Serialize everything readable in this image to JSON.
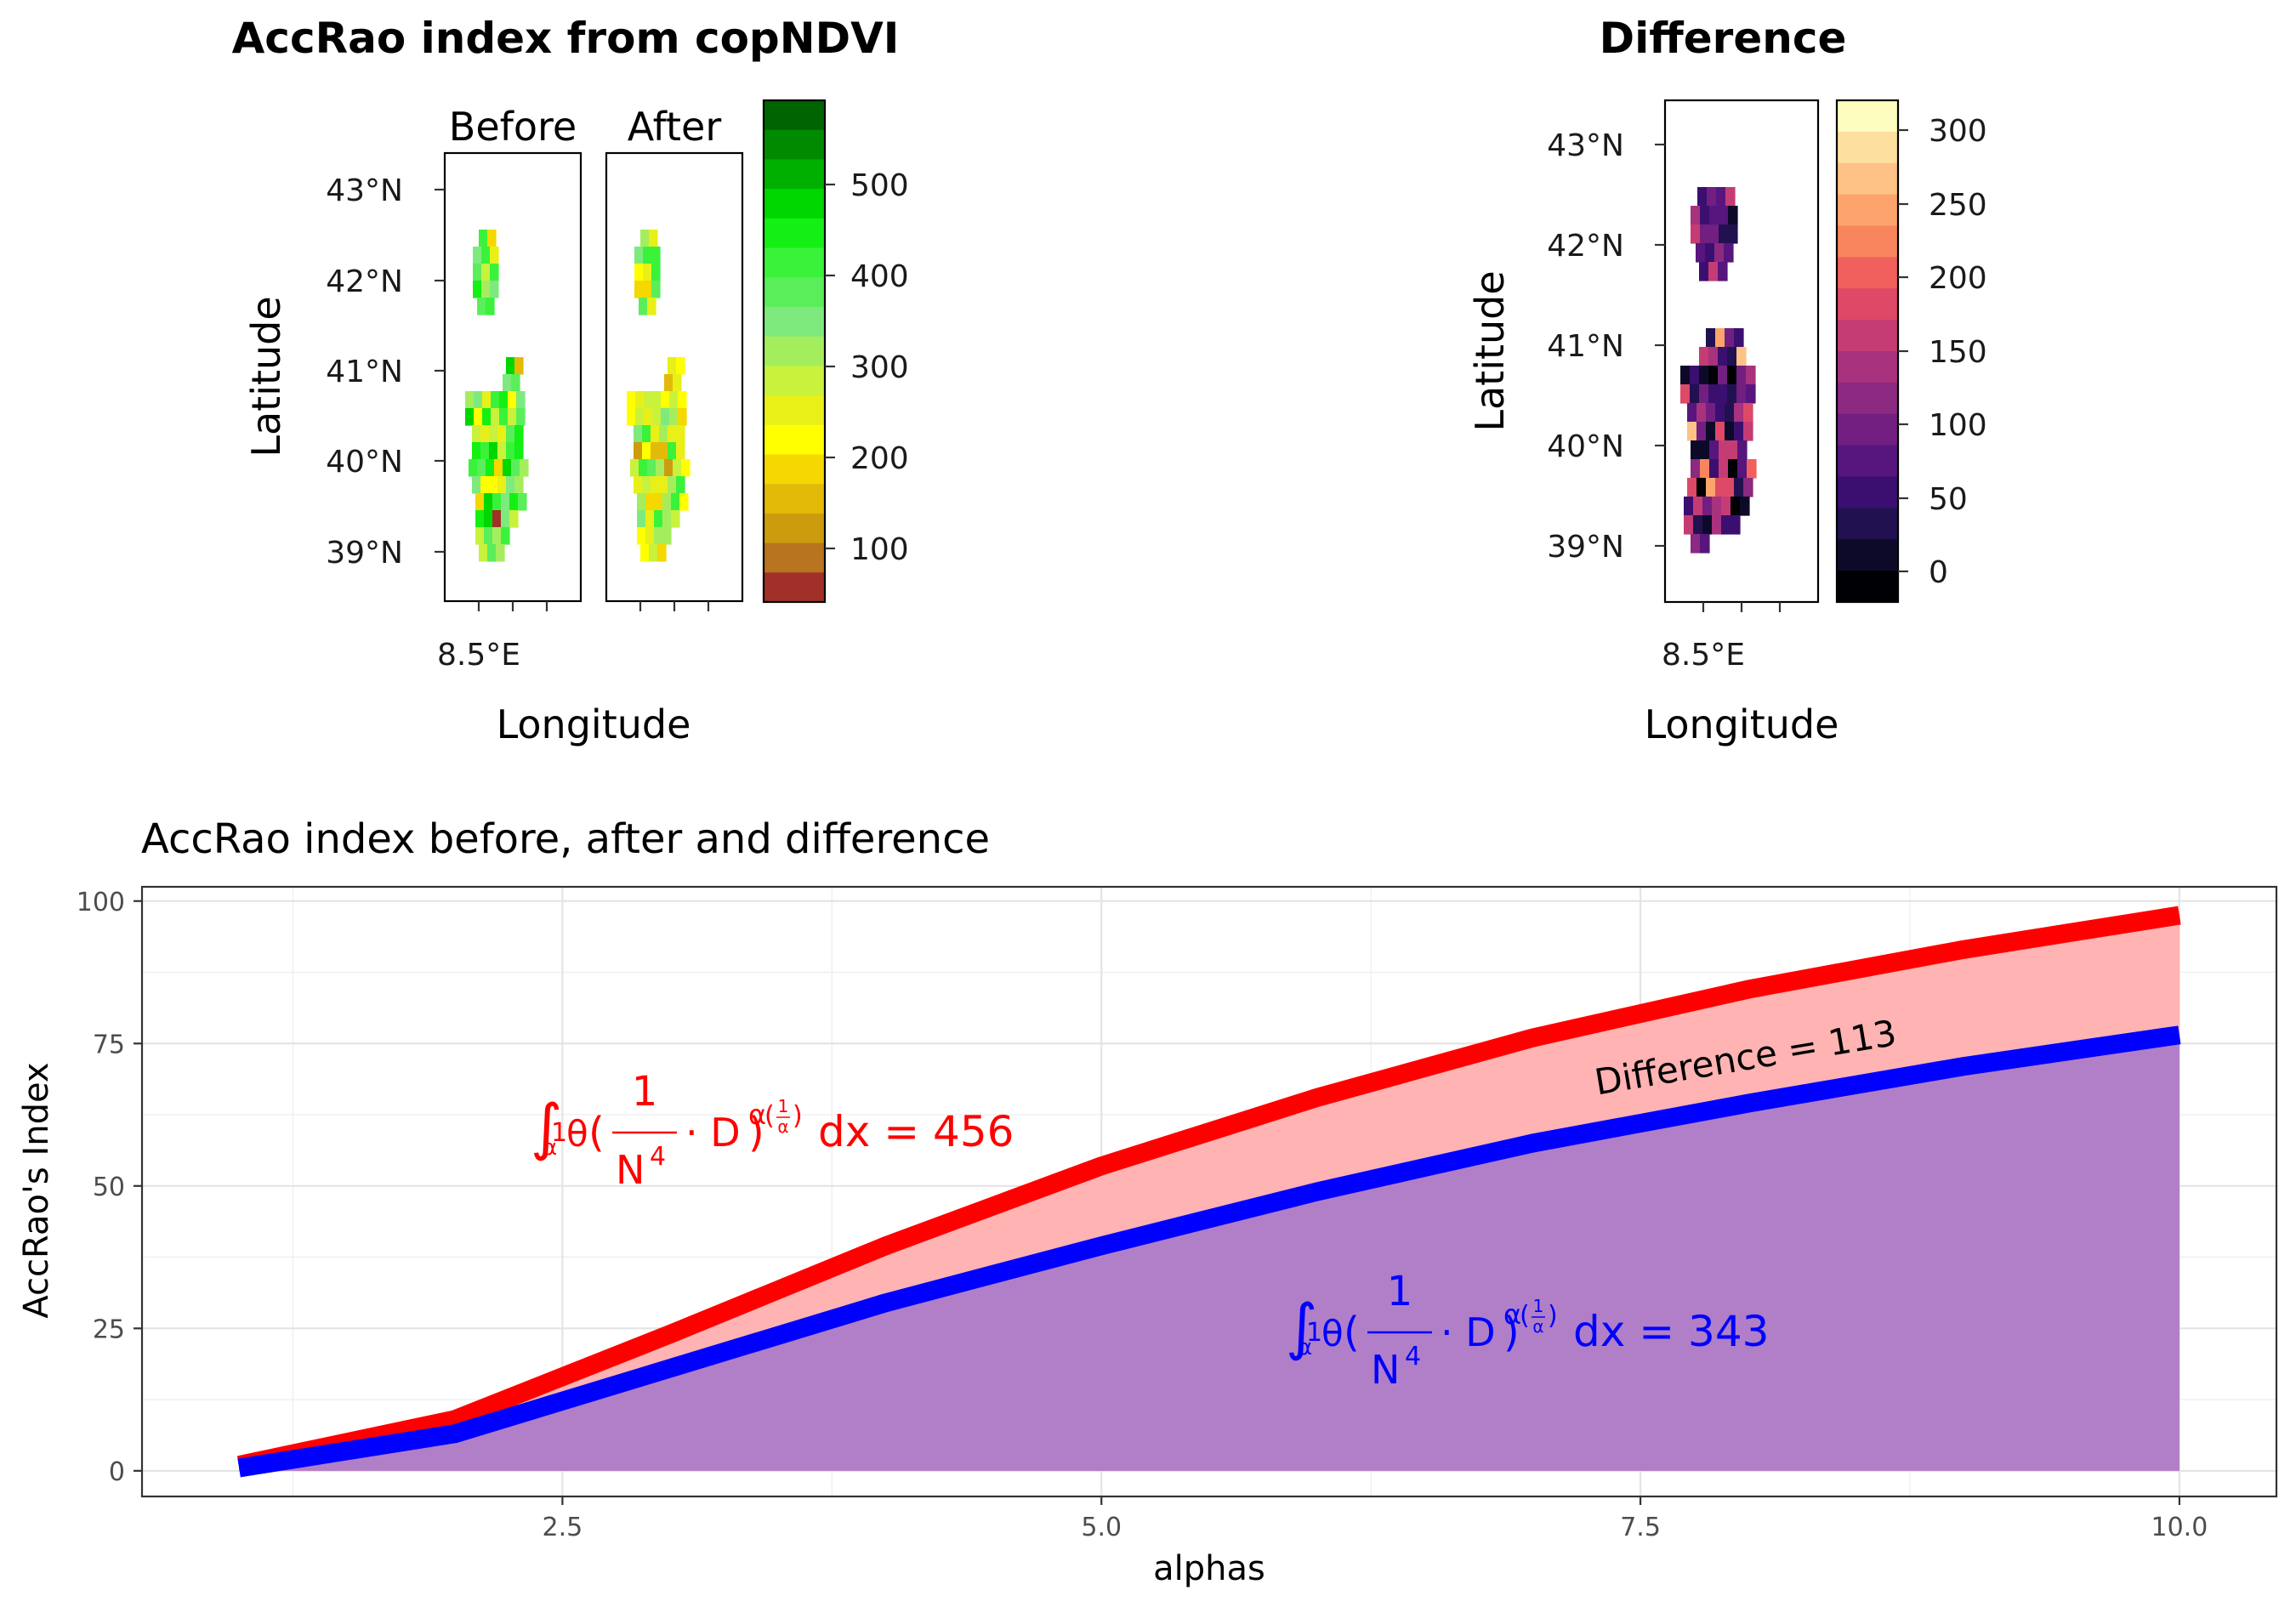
{
  "maps": {
    "left": {
      "title": "AccRao index from copNDVI",
      "panels": [
        "Before",
        "After"
      ],
      "ylabel": "Latitude",
      "xlabel": "Longitude",
      "ytick_labels": [
        "43°N",
        "42°N",
        "41°N",
        "40°N",
        "39°N"
      ],
      "xtick_labels": [
        "8.5°E"
      ],
      "colorbar": {
        "ticks": [
          "500",
          "400",
          "300",
          "200",
          "100"
        ],
        "colors": [
          "#006400",
          "#008A00",
          "#00B000",
          "#00D600",
          "#14F014",
          "#3AF23A",
          "#5AEE5A",
          "#7EEA7E",
          "#A4EE5E",
          "#C8F23C",
          "#E8F018",
          "#FFFF00",
          "#F4D800",
          "#E4BA08",
          "#CC9C0E",
          "#B8741E",
          "#A03028"
        ]
      }
    },
    "right": {
      "title": "Difference",
      "ylabel": "Latitude",
      "xlabel": "Longitude",
      "ytick_labels": [
        "43°N",
        "42°N",
        "41°N",
        "40°N",
        "39°N"
      ],
      "xtick_labels": [
        "8.5°E"
      ],
      "colorbar": {
        "ticks": [
          "300",
          "250",
          "200",
          "150",
          "100",
          "50",
          "0"
        ],
        "colors": [
          "#FCFDBF",
          "#FDE0A0",
          "#FEC287",
          "#FCA46C",
          "#F8855D",
          "#F1605D",
          "#DE4968",
          "#C53C74",
          "#A8327D",
          "#8C2981",
          "#721F81",
          "#57157E",
          "#3B0F70",
          "#221150",
          "#0D0A29",
          "#000004"
        ]
      }
    }
  },
  "chart_data": {
    "type": "area",
    "title": "AccRao index before, after and difference",
    "xlabel": "alphas",
    "ylabel": "AccRao's Index",
    "xlim": [
      0.55,
      10.45
    ],
    "ylim": [
      -4.5,
      102.5
    ],
    "x_ticks": [
      "2.5",
      "5.0",
      "7.5",
      "10.0"
    ],
    "y_ticks": [
      "0",
      "25",
      "50",
      "75",
      "100"
    ],
    "grid": true,
    "x": [
      1,
      2,
      3,
      4,
      5,
      6,
      7,
      8,
      9,
      10
    ],
    "series": [
      {
        "values": [
          1.0,
          9.0,
          24.0,
          39.5,
          53.5,
          65.5,
          76.0,
          84.5,
          91.5,
          97.5
        ],
        "color": "#FF0000",
        "fill": "#FFB3B3"
      },
      {
        "values": [
          0.5,
          6.5,
          18.0,
          29.5,
          39.5,
          49.0,
          57.5,
          64.5,
          71.0,
          76.5
        ],
        "color": "#0000FF",
        "fill": "#B07FC8"
      }
    ],
    "annotations": {
      "difference": "Difference = 113",
      "formula_after": {
        "integral": "∫",
        "sub": "α",
        "from": "1",
        "to": "θ",
        "paren_open": "(",
        "num": "1",
        "den_base": "N",
        "den_exp": "4",
        "dot": "· D",
        "exp_alpha": "α",
        "exp_paren": "(",
        "exp_num": "1",
        "exp_den": "α",
        "exp_close": ")",
        "paren_close": ")",
        "tail": "dx = 456"
      },
      "formula_before": {
        "integral": "∫",
        "sub": "α",
        "from": "1",
        "to": "θ",
        "paren_open": "(",
        "num": "1",
        "den_base": "N",
        "den_exp": "4",
        "dot": "· D",
        "exp_alpha": "α",
        "exp_paren": "(",
        "exp_num": "1",
        "exp_den": "α",
        "exp_close": ")",
        "paren_close": ")",
        "tail": "dx = 343"
      }
    }
  }
}
